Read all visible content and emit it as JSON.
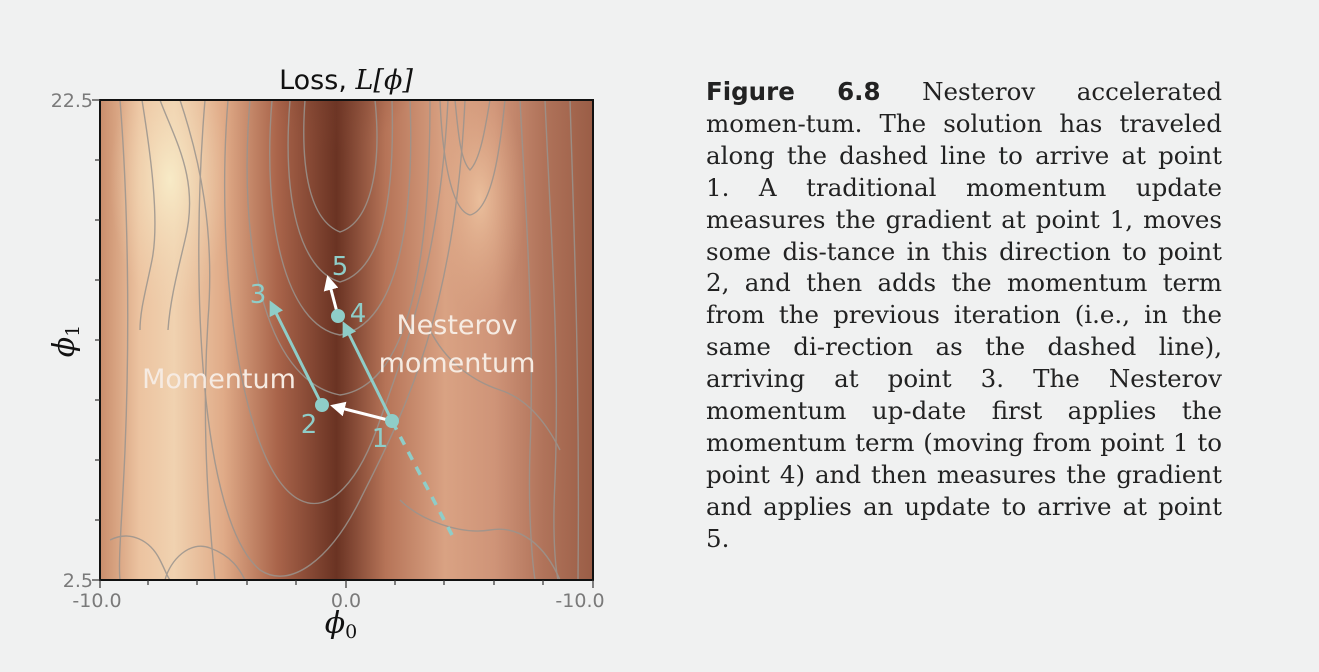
{
  "figure": {
    "title_text": "Loss, ",
    "title_math": "L[ϕ]",
    "x_axis_symbol": "ϕ",
    "x_axis_sub": "0",
    "y_axis_symbol": "ϕ",
    "y_axis_sub": "1",
    "x_ticks": [
      "-10.0",
      "0.0",
      "-10.0"
    ],
    "y_ticks": [
      "22.5",
      "2.5"
    ],
    "labels": {
      "momentum": "Momentum",
      "nesterov_line1": "Nesterov",
      "nesterov_line2": "momentum"
    },
    "points": [
      "1",
      "2",
      "3",
      "4",
      "5"
    ],
    "colors": {
      "path": "#8fcdc8",
      "arrow": "#ffffff",
      "dark_valley": "#3a1a10",
      "light_ridge": "#f5e4c4",
      "contour": "#9a948e"
    }
  },
  "caption": {
    "label": "Figure 6.8",
    "text": " Nesterov accelerated momen-tum.  The solution has traveled along the dashed line to arrive at point 1.  A traditional momentum update measures the gradient at point 1, moves some dis-tance in this direction to point 2, and then adds the momentum term from the previous iteration (i.e., in the same di-rection as the dashed line), arriving at point 3.  The Nesterov momentum up-date first applies the momentum term (moving from point 1 to point 4) and then measures the gradient and applies an update to arrive at point 5."
  }
}
